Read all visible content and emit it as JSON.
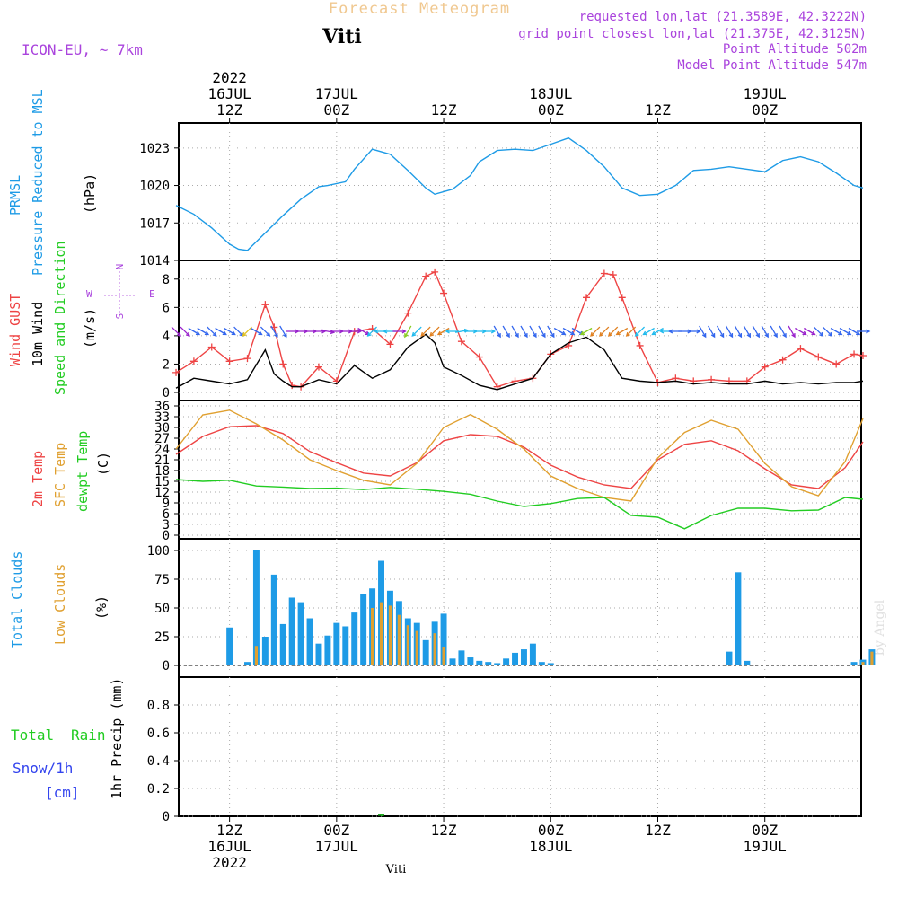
{
  "header": {
    "title": "Forecast Meteogram",
    "location": "Viti",
    "model": "ICON-EU, ~ 7km",
    "requested": "requested lon,lat (21.3589E, 42.3222N)",
    "grid_point": "grid point closest lon,lat (21.375E, 42.3125N)",
    "point_altitude": "Point Altitude 502m",
    "model_altitude": "Model Point Altitude 547m",
    "footer_location": "Viti",
    "credit": "by Angel"
  },
  "time_axis": {
    "year": "2022",
    "ticks": [
      {
        "h": 12,
        "line1": "12Z",
        "line2": "16JUL",
        "line3": "2022"
      },
      {
        "h": 24,
        "line1": "00Z",
        "line2": "17JUL",
        "line3": ""
      },
      {
        "h": 36,
        "line1": "12Z",
        "line2": "",
        "line3": ""
      },
      {
        "h": 48,
        "line1": "00Z",
        "line2": "18JUL",
        "line3": ""
      },
      {
        "h": 60,
        "line1": "12Z",
        "line2": "",
        "line3": ""
      },
      {
        "h": 72,
        "line1": "00Z",
        "line2": "19JUL",
        "line3": ""
      }
    ],
    "start_hour": 6.3,
    "end_hour": 82.8
  },
  "chart_data": [
    {
      "type": "line",
      "id": "pressure",
      "title": "PRMSL Pressure Reduced to MSL",
      "label_lines": [
        "PRMSL",
        "Pressure Reduced to MSL"
      ],
      "ylabel": "(hPa)",
      "ylim": [
        1014,
        1025
      ],
      "yticks": [
        1014,
        1017,
        1020,
        1023
      ],
      "x": [
        6,
        8,
        10,
        12,
        13,
        14,
        16,
        18,
        20,
        22,
        23,
        25,
        26,
        28,
        30,
        32,
        34,
        35,
        37,
        39,
        40,
        42,
        44,
        46,
        48,
        50,
        52,
        54,
        56,
        58,
        60,
        62,
        64,
        66,
        68,
        70,
        72,
        74,
        76,
        78,
        80,
        82,
        83
      ],
      "series": [
        {
          "name": "PRMSL",
          "color": "#1e9be6",
          "values": [
            1018.4,
            1017.7,
            1016.6,
            1015.3,
            1014.9,
            1014.8,
            1016.2,
            1017.6,
            1018.9,
            1019.9,
            1020.0,
            1020.3,
            1021.3,
            1022.9,
            1022.5,
            1021.2,
            1019.8,
            1019.3,
            1019.7,
            1020.8,
            1021.9,
            1022.8,
            1022.9,
            1022.8,
            1023.3,
            1023.8,
            1022.8,
            1021.5,
            1019.8,
            1019.2,
            1019.3,
            1020.0,
            1021.2,
            1021.3,
            1021.5,
            1021.3,
            1021.1,
            1022.0,
            1022.3,
            1021.9,
            1021.0,
            1020.0,
            1019.8
          ]
        }
      ]
    },
    {
      "type": "line",
      "id": "wind",
      "title": "Wind GUST 10m Wind Speed and Direction",
      "label_lines": [
        "Wind GUST",
        "10m Wind",
        "Speed and Direction"
      ],
      "ylabel": "(m/s)",
      "compass": {
        "n": "N",
        "s": "S",
        "w": "W",
        "e": "E"
      },
      "ylim": [
        0,
        9
      ],
      "yticks": [
        0,
        2,
        4,
        6,
        8
      ],
      "x": [
        6,
        8,
        10,
        12,
        14,
        16,
        17,
        18,
        19,
        20,
        22,
        24,
        26,
        28,
        30,
        32,
        34,
        35,
        36,
        38,
        40,
        42,
        44,
        46,
        48,
        50,
        52,
        54,
        55,
        56,
        58,
        60,
        62,
        64,
        66,
        68,
        70,
        72,
        74,
        76,
        78,
        80,
        82,
        83
      ],
      "series": [
        {
          "name": "Wind GUST",
          "color": "#ee4444",
          "marker": "+",
          "values": [
            1.4,
            2.2,
            3.2,
            2.2,
            2.4,
            6.2,
            4.6,
            2.0,
            0.5,
            0.4,
            1.8,
            0.8,
            4.3,
            4.5,
            3.4,
            5.6,
            8.2,
            8.5,
            7.0,
            3.6,
            2.5,
            0.4,
            0.8,
            1.0,
            2.7,
            3.3,
            6.7,
            8.4,
            8.3,
            6.7,
            3.3,
            0.7,
            1.0,
            0.8,
            0.9,
            0.8,
            0.8,
            1.8,
            2.3,
            3.1,
            2.5,
            2.0,
            2.7,
            2.6
          ]
        },
        {
          "name": "10m Wind",
          "color": "#000000",
          "values": [
            0.3,
            1.0,
            0.8,
            0.6,
            0.9,
            3.0,
            1.3,
            0.8,
            0.4,
            0.4,
            0.9,
            0.6,
            1.9,
            1.0,
            1.6,
            3.2,
            4.1,
            3.5,
            1.8,
            1.2,
            0.5,
            0.2,
            0.6,
            1.0,
            2.7,
            3.5,
            3.9,
            3.0,
            2.0,
            1.0,
            0.8,
            0.7,
            0.8,
            0.6,
            0.7,
            0.6,
            0.6,
            0.8,
            0.6,
            0.7,
            0.6,
            0.7,
            0.7,
            0.8
          ]
        }
      ]
    },
    {
      "type": "line",
      "id": "temperature",
      "title": "2m Temp SFC Temp dewpt Temp",
      "label_lines": [
        "2m Temp",
        "SFC Temp",
        "dewpt Temp"
      ],
      "ylabel": "(C)",
      "ylim": [
        0,
        36
      ],
      "yticks": [
        0,
        3,
        6,
        9,
        12,
        15,
        18,
        21,
        24,
        27,
        30,
        33,
        36
      ],
      "x": [
        6,
        9,
        12,
        15,
        18,
        21,
        24,
        27,
        30,
        33,
        36,
        39,
        42,
        45,
        48,
        51,
        54,
        57,
        60,
        63,
        66,
        69,
        72,
        75,
        78,
        81,
        83
      ],
      "series": [
        {
          "name": "2m Temp",
          "color": "#ee4444",
          "values": [
            22.5,
            27.5,
            30.2,
            30.5,
            28.3,
            23.3,
            20.2,
            17.3,
            16.5,
            20.2,
            26.3,
            28.0,
            27.5,
            24.5,
            19.5,
            16.2,
            14.0,
            13.0,
            21.0,
            25.3,
            26.3,
            23.5,
            18.5,
            14.0,
            13.0,
            18.8,
            26.0
          ]
        },
        {
          "name": "SFC Temp",
          "color": "#e0a030",
          "values": [
            24.0,
            33.5,
            34.8,
            31.0,
            26.5,
            21.0,
            18.0,
            15.3,
            14.0,
            20.0,
            30.0,
            33.6,
            29.5,
            24.0,
            16.5,
            13.0,
            10.5,
            9.5,
            21.5,
            28.6,
            32.0,
            29.5,
            20.0,
            13.5,
            11.0,
            20.5,
            32.5
          ]
        },
        {
          "name": "dewpt Temp",
          "color": "#22cc22",
          "values": [
            15.5,
            15.0,
            15.3,
            13.7,
            13.4,
            13.0,
            13.1,
            12.7,
            13.3,
            12.8,
            12.2,
            11.4,
            9.5,
            8.0,
            8.8,
            10.2,
            10.5,
            5.5,
            5.0,
            1.8,
            5.5,
            7.5,
            7.5,
            6.8,
            7.0,
            10.5,
            10.0
          ]
        }
      ]
    },
    {
      "type": "bar",
      "id": "clouds",
      "title": "Total Clouds Low Clouds",
      "label_lines": [
        "Total Clouds",
        "Low Clouds"
      ],
      "ylabel": "(%)",
      "ylim": [
        0,
        100
      ],
      "yticks": [
        0,
        25,
        50,
        75,
        100
      ],
      "x": [
        12,
        14,
        15,
        16,
        17,
        18,
        19,
        20,
        21,
        22,
        23,
        24,
        25,
        26,
        27,
        28,
        29,
        30,
        31,
        32,
        33,
        34,
        35,
        36,
        37,
        38,
        39,
        40,
        41,
        42,
        43,
        44,
        45,
        46,
        47,
        48,
        68,
        69,
        70,
        82,
        83,
        84
      ],
      "series": [
        {
          "name": "Total Clouds",
          "color": "#1e9be6",
          "values": [
            33,
            3,
            100,
            25,
            79,
            36,
            59,
            55,
            41,
            19,
            26,
            37,
            34,
            46,
            62,
            67,
            91,
            65,
            56,
            41,
            37,
            22,
            38,
            45,
            6,
            13,
            7,
            4,
            3,
            2,
            6,
            11,
            14,
            19,
            3,
            2,
            12,
            81,
            4,
            3,
            5,
            14
          ]
        },
        {
          "name": "Low Clouds",
          "color": "#e0a030",
          "values": [
            0,
            0,
            17,
            0,
            0,
            0,
            0,
            0,
            0,
            0,
            0,
            0,
            0,
            0,
            0,
            50,
            55,
            52,
            44,
            35,
            30,
            0,
            28,
            16,
            0,
            0,
            0,
            0,
            0,
            0,
            0,
            0,
            0,
            0,
            0,
            0,
            0,
            0,
            0,
            0,
            3,
            12
          ]
        }
      ]
    },
    {
      "type": "bar",
      "id": "precip",
      "title": "1hr Precip (mm)",
      "label_lines": [
        "Total",
        "Rain",
        "Snow/1h",
        "[cm]"
      ],
      "ylabel": "1hr Precip (mm)",
      "ylim": [
        0,
        1.0
      ],
      "yticks": [
        0,
        0.2,
        0.4,
        0.6,
        0.8
      ],
      "ytick_labels": [
        "0",
        "0.2",
        "0.4",
        "0.6",
        "0.8"
      ],
      "x": [
        29
      ],
      "series": [
        {
          "name": "Rain",
          "color": "#22aa22",
          "values": [
            0.01
          ]
        }
      ]
    }
  ],
  "wind_arrows": {
    "x": [
      6,
      7,
      8,
      9,
      10,
      11,
      12,
      13,
      14,
      15,
      16,
      17,
      18,
      19,
      20,
      21,
      22,
      23,
      24,
      25,
      26,
      27,
      28,
      29,
      30,
      31,
      32,
      33,
      34,
      35,
      36,
      37,
      38,
      39,
      40,
      41,
      42,
      43,
      44,
      45,
      46,
      47,
      48,
      49,
      50,
      51,
      52,
      53,
      54,
      55,
      56,
      57,
      58,
      59,
      60,
      61,
      62,
      63,
      64,
      65,
      66,
      67,
      68,
      69,
      70,
      71,
      72,
      73,
      74,
      75,
      76,
      77,
      78,
      79,
      80,
      81,
      82,
      83
    ],
    "direction_deg": [
      315,
      315,
      300,
      300,
      315,
      300,
      300,
      315,
      45,
      300,
      315,
      330,
      330,
      270,
      270,
      270,
      270,
      280,
      270,
      270,
      270,
      300,
      45,
      90,
      90,
      270,
      30,
      45,
      45,
      45,
      60,
      90,
      260,
      270,
      270,
      270,
      330,
      330,
      330,
      330,
      330,
      330,
      330,
      300,
      300,
      300,
      60,
      45,
      45,
      45,
      60,
      45,
      45,
      60,
      60,
      90,
      90,
      270,
      270,
      330,
      330,
      330,
      330,
      330,
      330,
      330,
      330,
      330,
      330,
      330,
      300,
      300,
      315,
      315,
      300,
      300,
      300,
      270
    ],
    "colors": [
      "#9922cc",
      "#9922cc",
      "#3366ee",
      "#3366ee",
      "#3366ee",
      "#3366ee",
      "#3366ee",
      "#3366ee",
      "#e0c020",
      "#3366ee",
      "#3366ee",
      "#3366ee",
      "#3366ee",
      "#9922cc",
      "#9922cc",
      "#9922cc",
      "#9922cc",
      "#9922cc",
      "#9922cc",
      "#9922cc",
      "#9922cc",
      "#9922cc",
      "#22bbee",
      "#22bbee",
      "#22bbee",
      "#9922cc",
      "#88cc22",
      "#22bbee",
      "#e08020",
      "#e08020",
      "#e08020",
      "#22bbee",
      "#22bbee",
      "#22bbee",
      "#22bbee",
      "#22bbee",
      "#3366ee",
      "#3366ee",
      "#3366ee",
      "#3366ee",
      "#3366ee",
      "#3366ee",
      "#3366ee",
      "#3366ee",
      "#3366ee",
      "#3366ee",
      "#88cc22",
      "#e08020",
      "#e08020",
      "#e08020",
      "#e08020",
      "#e08020",
      "#22bbee",
      "#22bbee",
      "#22bbee",
      "#22bbee",
      "#3366ee",
      "#3366ee",
      "#3366ee",
      "#3366ee",
      "#3366ee",
      "#3366ee",
      "#3366ee",
      "#3366ee",
      "#3366ee",
      "#3366ee",
      "#3366ee",
      "#3366ee",
      "#3366ee",
      "#9922cc",
      "#9922cc",
      "#9922cc",
      "#3366ee",
      "#3366ee",
      "#3366ee",
      "#3366ee",
      "#3366ee",
      "#3366ee"
    ]
  },
  "colors": {
    "title": "#f0c890",
    "info": "#aa44dd",
    "pressure_label": "#1e9be6",
    "gust_label": "#ee4444",
    "wind_label": "#000000",
    "dir_label": "#22cc22",
    "temp2m_label": "#ee4444",
    "sfc_label": "#e0a030",
    "dewpt_label": "#22cc22",
    "total_clouds_label": "#1e9be6",
    "low_clouds_label": "#e0a030",
    "rain_label": "#22cc22",
    "snow_label": "#3344ee",
    "grid": "#aaaaaa"
  }
}
